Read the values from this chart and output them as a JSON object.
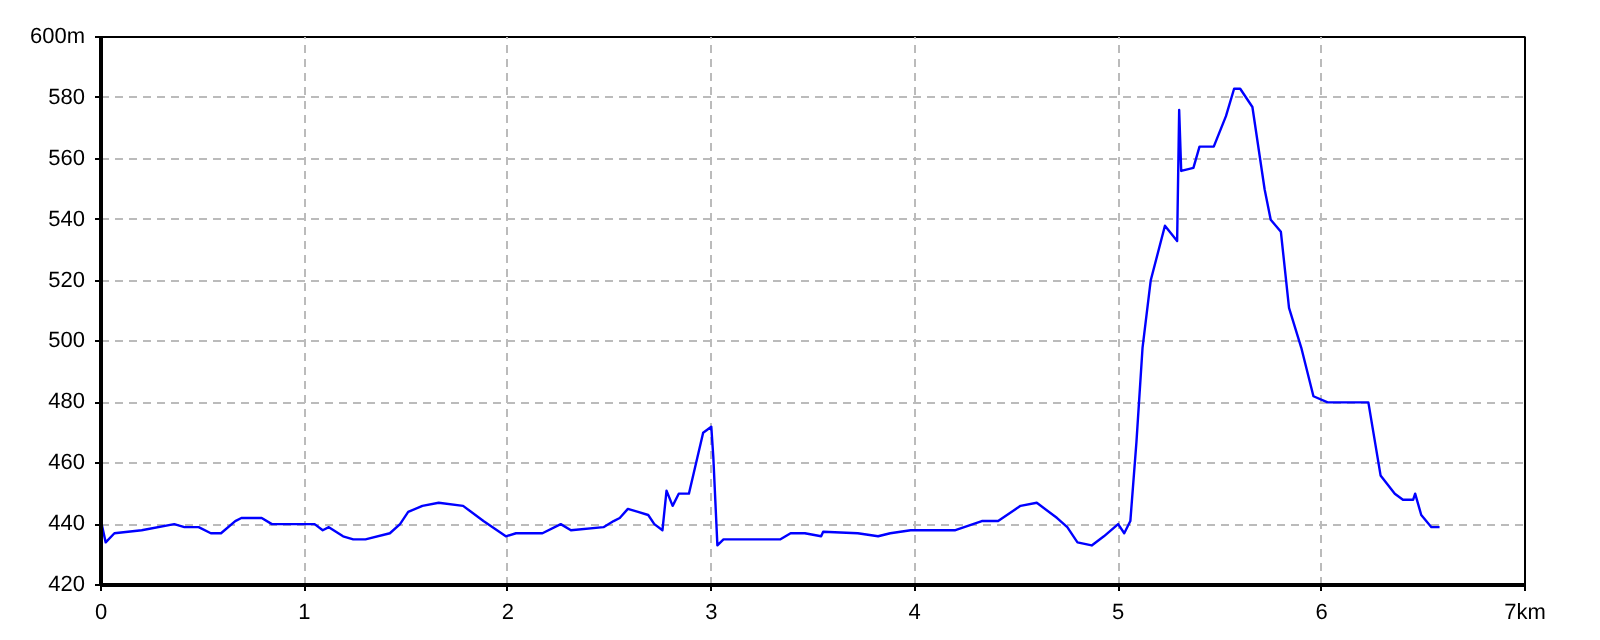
{
  "chart_data": {
    "type": "line",
    "xlim": [
      0,
      7
    ],
    "ylim": [
      420,
      600
    ],
    "xticks": [
      0,
      1,
      2,
      3,
      4,
      5,
      6,
      {
        "value": 7,
        "label": "7km"
      }
    ],
    "yticks": [
      420,
      440,
      460,
      480,
      500,
      520,
      540,
      560,
      580,
      {
        "value": 600,
        "label": "600m"
      }
    ],
    "grid": true,
    "marker": "none",
    "line_style": "solid",
    "series": [
      {
        "color": "#0000ff",
        "x": [
          0,
          0.023,
          0.066,
          0.2,
          0.36,
          0.41,
          0.48,
          0.54,
          0.59,
          0.66,
          0.69,
          0.79,
          0.84,
          1.05,
          1.09,
          1.12,
          1.19,
          1.24,
          1.3,
          1.42,
          1.47,
          1.51,
          1.58,
          1.66,
          1.78,
          1.88,
          1.99,
          2.04,
          2.17,
          2.26,
          2.31,
          2.47,
          2.52,
          2.55,
          2.59,
          2.64,
          2.69,
          2.72,
          2.76,
          2.78,
          2.81,
          2.84,
          2.89,
          2.96,
          3.0,
          3.01,
          3.03,
          3.06,
          3.34,
          3.39,
          3.46,
          3.54,
          3.55,
          3.72,
          3.82,
          3.88,
          3.98,
          4.2,
          4.33,
          4.41,
          4.52,
          4.6,
          4.7,
          4.75,
          4.8,
          4.87,
          4.93,
          5.0,
          5.03,
          5.06,
          5.09,
          5.12,
          5.16,
          5.23,
          5.29,
          5.3,
          5.31,
          5.37,
          5.4,
          5.47,
          5.53,
          5.57,
          5.6,
          5.66,
          5.72,
          5.75,
          5.8,
          5.84,
          5.9,
          5.96,
          6.03,
          6.23,
          6.29,
          6.36,
          6.4,
          6.45,
          6.46,
          6.49,
          6.54,
          6.58
        ],
        "values": [
          441,
          434,
          437,
          438,
          440,
          439,
          439,
          437,
          437,
          441,
          442,
          442,
          440,
          440,
          438,
          439,
          436,
          435,
          435,
          437,
          440,
          444,
          446,
          447,
          446,
          441,
          436,
          437,
          437,
          440,
          438,
          439,
          441,
          442,
          445,
          444,
          443,
          440,
          438,
          451,
          446,
          450,
          450,
          470,
          472,
          462,
          433,
          435,
          435,
          437,
          437,
          436,
          437.5,
          437,
          436,
          437,
          438,
          438,
          441,
          441,
          446,
          447,
          442,
          439,
          434,
          433,
          436,
          440,
          437,
          441,
          467,
          498,
          520,
          538,
          533,
          576,
          556,
          557,
          564,
          564,
          574,
          583,
          583,
          577,
          550,
          540,
          536,
          511,
          498,
          482,
          480,
          480,
          456,
          450,
          448,
          448,
          450,
          443,
          439,
          439
        ]
      }
    ]
  }
}
